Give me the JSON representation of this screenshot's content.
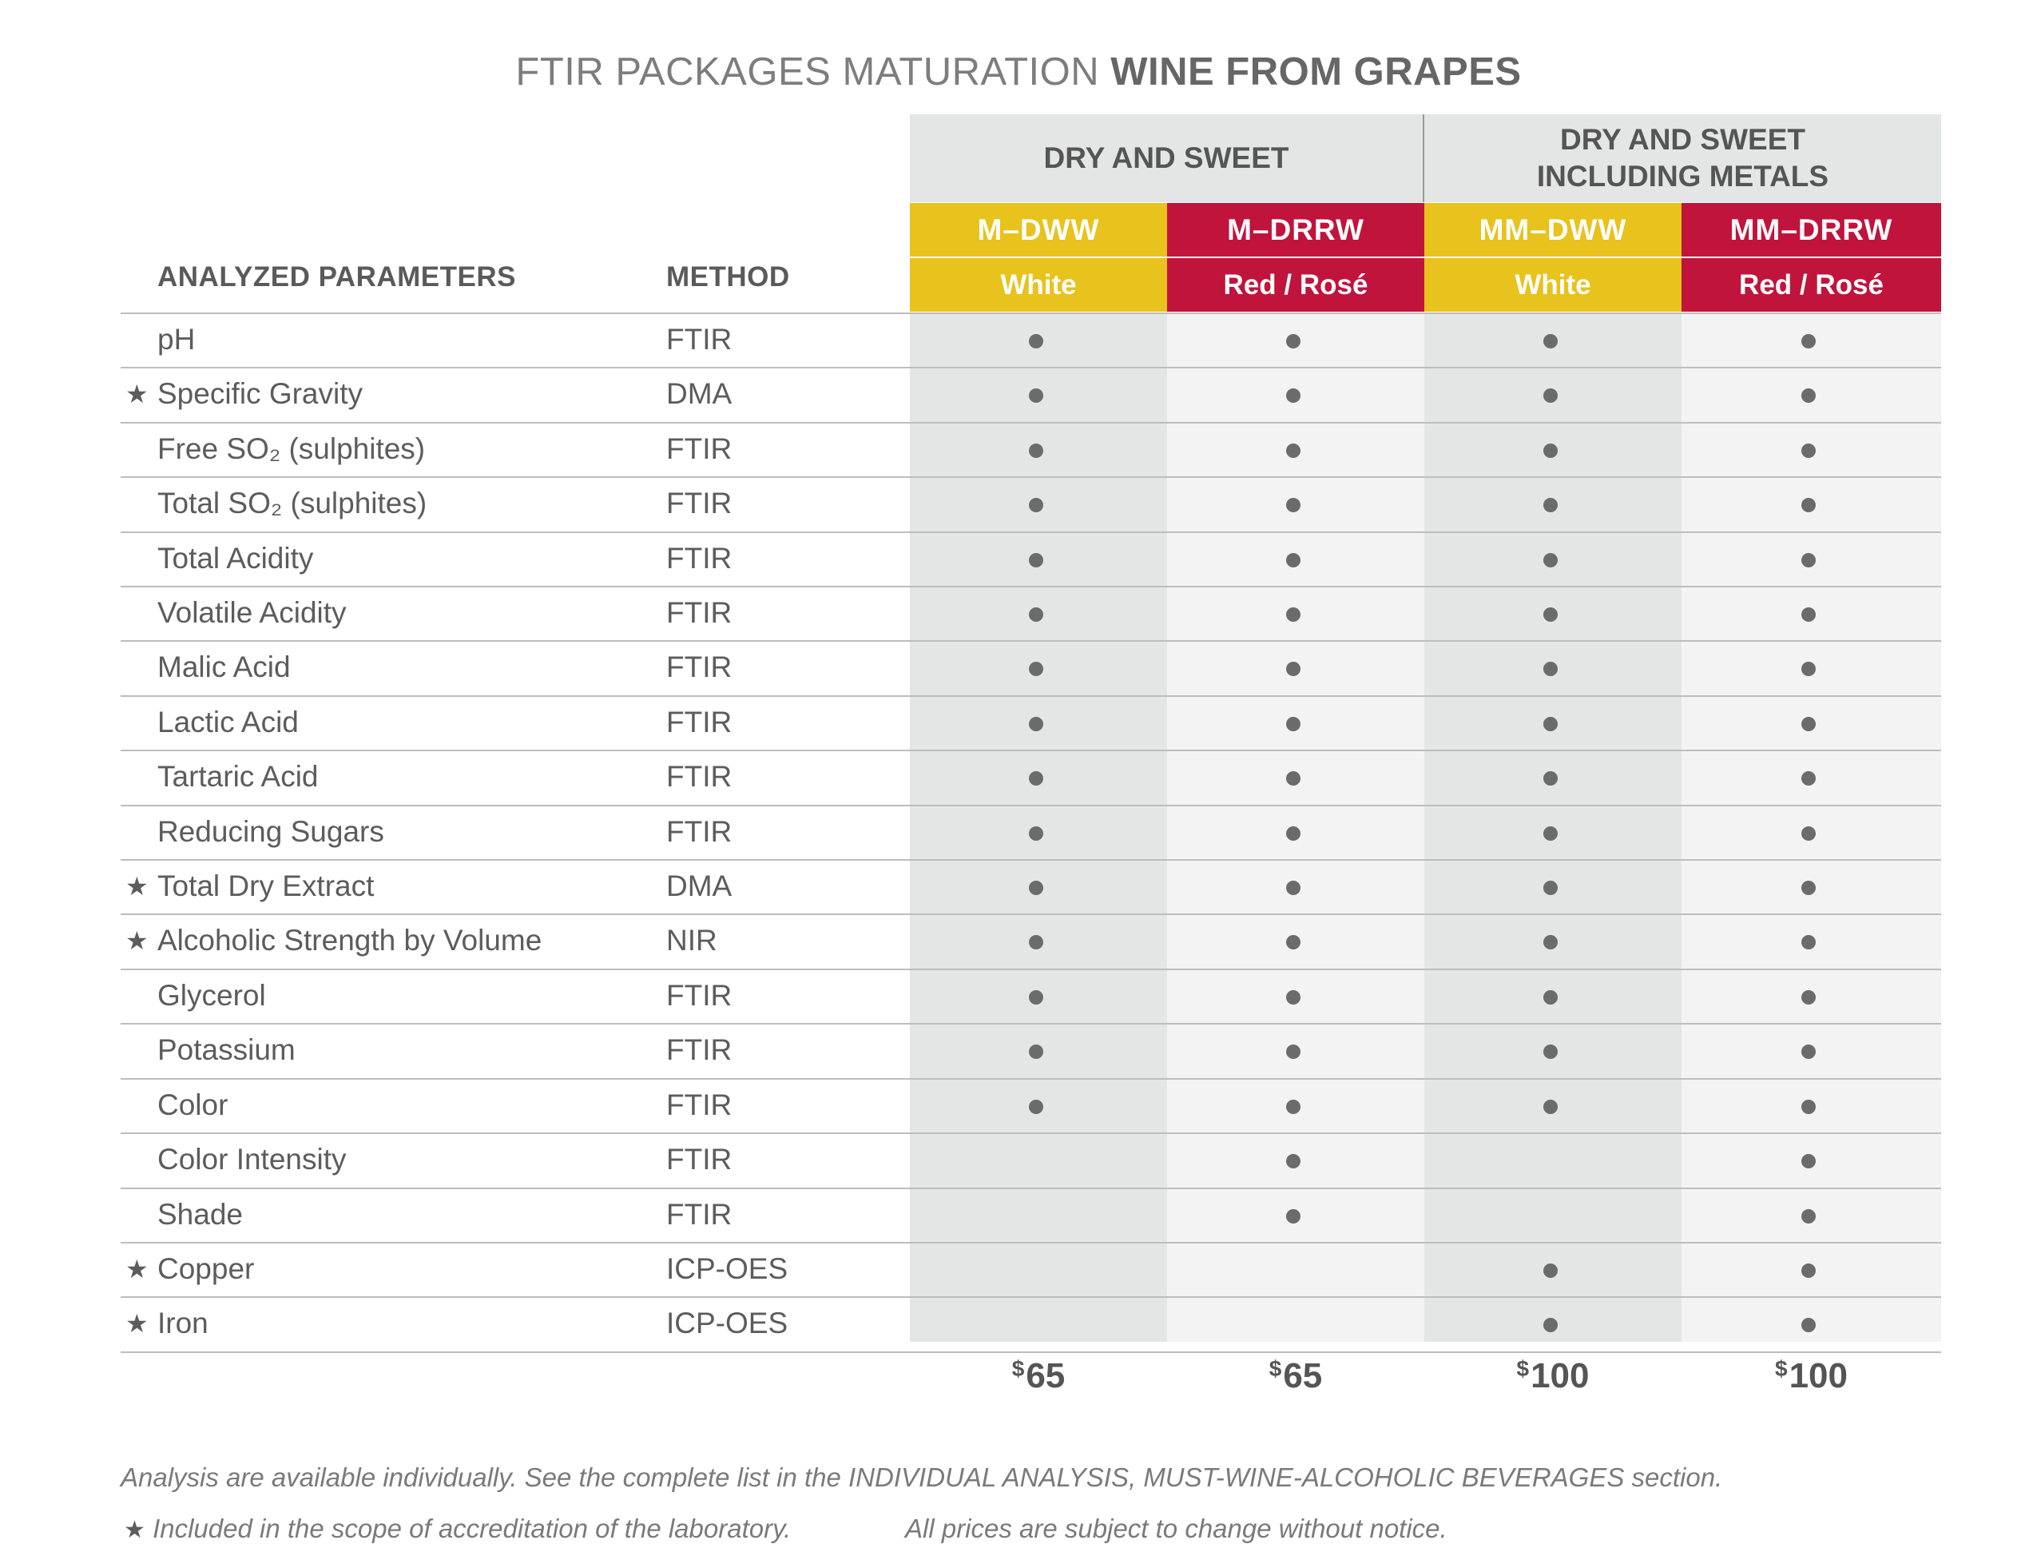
{
  "title": {
    "part1": "FTIR PACKAGES",
    "part2": "MATURATION",
    "part3": "WINE FROM GRAPES"
  },
  "headers": {
    "parameters": "ANALYZED PARAMETERS",
    "method": "METHOD"
  },
  "groups": [
    {
      "label": "DRY AND SWEET"
    },
    {
      "label": "DRY AND SWEET\nINCLUDING METALS"
    }
  ],
  "packages": [
    {
      "code": "M–DWW",
      "type": "White",
      "color": "#e8c21d",
      "price_currency": "$",
      "price_value": "65"
    },
    {
      "code": "M–DRRW",
      "type": "Red / Rosé",
      "color": "#c0143c",
      "price_currency": "$",
      "price_value": "65"
    },
    {
      "code": "MM–DWW",
      "type": "White",
      "color": "#e8c21d",
      "price_currency": "$",
      "price_value": "100"
    },
    {
      "code": "MM–DRRW",
      "type": "Red / Rosé",
      "color": "#c0143c",
      "price_currency": "$",
      "price_value": "100"
    }
  ],
  "rows": [
    {
      "star": "",
      "param": "pH",
      "method": "FTIR",
      "included": [
        true,
        true,
        true,
        true
      ]
    },
    {
      "star": "★",
      "param": "Specific Gravity",
      "method": "DMA",
      "included": [
        true,
        true,
        true,
        true
      ]
    },
    {
      "star": "",
      "param": "Free SO₂ (sulphites)",
      "method": "FTIR",
      "included": [
        true,
        true,
        true,
        true
      ]
    },
    {
      "star": "",
      "param": "Total SO₂ (sulphites)",
      "method": "FTIR",
      "included": [
        true,
        true,
        true,
        true
      ]
    },
    {
      "star": "",
      "param": "Total Acidity",
      "method": "FTIR",
      "included": [
        true,
        true,
        true,
        true
      ]
    },
    {
      "star": "",
      "param": "Volatile Acidity",
      "method": "FTIR",
      "included": [
        true,
        true,
        true,
        true
      ]
    },
    {
      "star": "",
      "param": "Malic Acid",
      "method": "FTIR",
      "included": [
        true,
        true,
        true,
        true
      ]
    },
    {
      "star": "",
      "param": "Lactic Acid",
      "method": "FTIR",
      "included": [
        true,
        true,
        true,
        true
      ]
    },
    {
      "star": "",
      "param": "Tartaric Acid",
      "method": "FTIR",
      "included": [
        true,
        true,
        true,
        true
      ]
    },
    {
      "star": "",
      "param": "Reducing Sugars",
      "method": "FTIR",
      "included": [
        true,
        true,
        true,
        true
      ]
    },
    {
      "star": "★",
      "param": "Total Dry Extract",
      "method": "DMA",
      "included": [
        true,
        true,
        true,
        true
      ]
    },
    {
      "star": "★",
      "param": "Alcoholic Strength by Volume",
      "method": "NIR",
      "included": [
        true,
        true,
        true,
        true
      ]
    },
    {
      "star": "",
      "param": "Glycerol",
      "method": "FTIR",
      "included": [
        true,
        true,
        true,
        true
      ]
    },
    {
      "star": "",
      "param": "Potassium",
      "method": "FTIR",
      "included": [
        true,
        true,
        true,
        true
      ]
    },
    {
      "star": "",
      "param": "Color",
      "method": "FTIR",
      "included": [
        true,
        true,
        true,
        true
      ]
    },
    {
      "star": "",
      "param": "Color Intensity",
      "method": "FTIR",
      "included": [
        false,
        true,
        false,
        true
      ]
    },
    {
      "star": "",
      "param": "Shade",
      "method": "FTIR",
      "included": [
        false,
        true,
        false,
        true
      ]
    },
    {
      "star": "★",
      "param": "Copper",
      "method": "ICP-OES",
      "included": [
        false,
        false,
        true,
        true
      ]
    },
    {
      "star": "★",
      "param": "Iron",
      "method": "ICP-OES",
      "included": [
        false,
        false,
        true,
        true
      ]
    }
  ],
  "footer": {
    "note1": "Analysis are available individually. See the complete list in the INDIVIDUAL ANALYSIS, MUST-WINE-ALCOHOLIC BEVERAGES section.",
    "star": "★",
    "note2": "Included in the scope of accreditation of the laboratory.",
    "note3": "All prices are subject to change without notice."
  },
  "colors": {
    "yellow": "#e8c21d",
    "red": "#c0143c",
    "shade_dark": "#e4e5e5",
    "shade_light": "#f3f3f3",
    "dot": "#6b6b6b"
  }
}
